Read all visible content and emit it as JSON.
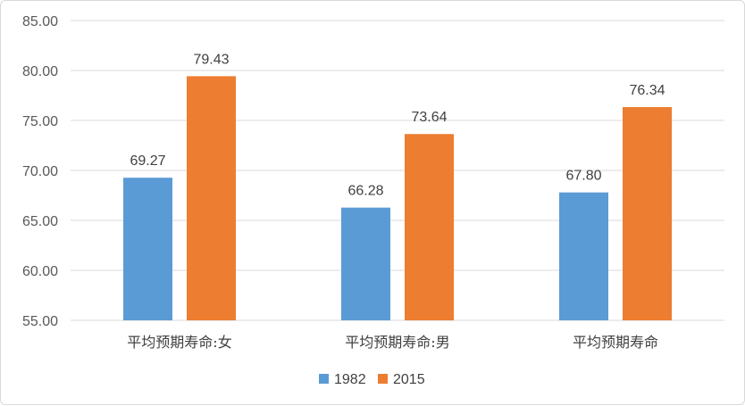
{
  "chart_data": {
    "type": "bar",
    "categories": [
      "平均预期寿命:女",
      "平均预期寿命:男",
      "平均预期寿命"
    ],
    "series": [
      {
        "name": "1982",
        "values": [
          69.27,
          66.28,
          67.8
        ],
        "labels": [
          "69.27",
          "66.28",
          "67.80"
        ],
        "color": "#5b9bd5"
      },
      {
        "name": "2015",
        "values": [
          79.43,
          73.64,
          76.34
        ],
        "labels": [
          "79.43",
          "73.64",
          "76.34"
        ],
        "color": "#ed7d31"
      }
    ],
    "ylim": [
      55,
      85
    ],
    "yticks": [
      "55.00",
      "60.00",
      "65.00",
      "70.00",
      "75.00",
      "80.00",
      "85.00"
    ],
    "grid": true,
    "legend_position": "bottom",
    "title": "",
    "xlabel": "",
    "ylabel": ""
  }
}
